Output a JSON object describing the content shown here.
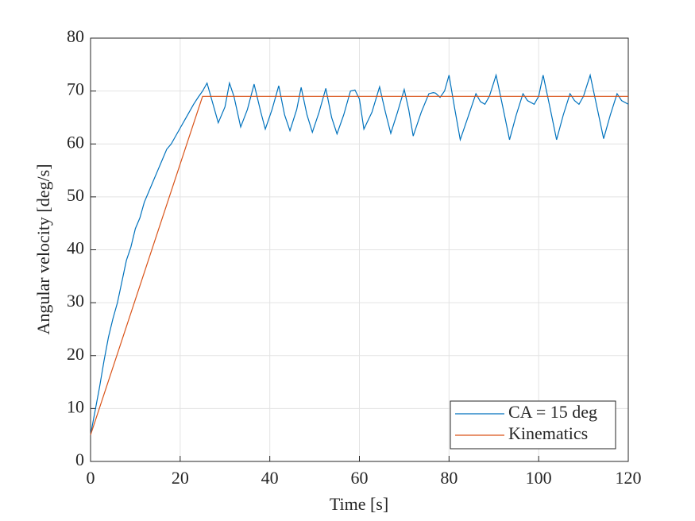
{
  "chart_data": {
    "type": "line",
    "x_label": "Time [s]",
    "y_label": "Angular velocity [deg/s]",
    "xlim": [
      0,
      120
    ],
    "xticks": [
      0,
      20,
      40,
      60,
      80,
      100,
      120
    ],
    "ylim": [
      0,
      80
    ],
    "yticks": [
      0,
      10,
      20,
      30,
      40,
      50,
      60,
      70,
      80
    ],
    "grid": true,
    "legend_position": "lower right",
    "series": [
      {
        "name": "CA = 15 deg",
        "color": "#0072BD",
        "x": [
          0,
          1,
          2,
          3,
          4,
          5,
          6,
          7,
          8,
          9,
          10,
          11,
          12,
          13,
          14,
          15,
          16,
          17,
          18,
          19,
          20,
          21,
          22,
          23,
          24,
          25,
          26,
          27,
          28.5,
          30,
          31,
          32,
          33.5,
          35,
          36.5,
          38,
          39,
          40.5,
          42,
          43.3,
          44.5,
          46,
          47,
          48.3,
          49.5,
          51,
          52.5,
          53.8,
          55,
          56.5,
          58,
          59,
          60,
          61,
          62.8,
          64.5,
          65.8,
          67,
          68.5,
          70,
          71,
          72,
          73.8,
          75.5,
          76.5,
          77,
          78,
          79,
          80,
          81.2,
          82.5,
          84.2,
          86,
          87,
          88,
          89,
          90.5,
          92,
          93.5,
          95,
          96.5,
          97.5,
          99,
          100,
          101,
          102.5,
          104,
          105.5,
          107,
          108,
          109,
          110,
          111.5,
          113,
          114.5,
          116,
          117.5,
          118.5,
          120
        ],
        "values": [
          5,
          9.5,
          14,
          19,
          23.5,
          27,
          30,
          34,
          38,
          40.5,
          44,
          46,
          49,
          51,
          53,
          55,
          57,
          59,
          60,
          61.5,
          63,
          64.5,
          66,
          67.5,
          68.8,
          70,
          71.5,
          68.5,
          64,
          67,
          71.5,
          69,
          63.2,
          66.5,
          71.3,
          66,
          62.8,
          66.5,
          71,
          65.5,
          62.5,
          66.5,
          70.7,
          65.5,
          62.2,
          66,
          70.5,
          65,
          61.9,
          65.5,
          70,
          70.2,
          68.5,
          62.8,
          66,
          70.8,
          66,
          62,
          66,
          70.3,
          66.5,
          61.5,
          66,
          69.5,
          69.7,
          69.6,
          68.8,
          70,
          73,
          67,
          60.8,
          65,
          69.5,
          68,
          67.5,
          69,
          73,
          67,
          60.8,
          65.5,
          69.5,
          68.2,
          67.5,
          69,
          73,
          67,
          60.8,
          65.5,
          69.5,
          68.2,
          67.5,
          69,
          73,
          67,
          61,
          65.5,
          69.5,
          68.2,
          67.5
        ]
      },
      {
        "name": "Kinematics",
        "color": "#D95319",
        "x": [
          0,
          25,
          120
        ],
        "values": [
          5,
          69,
          69
        ]
      }
    ]
  }
}
